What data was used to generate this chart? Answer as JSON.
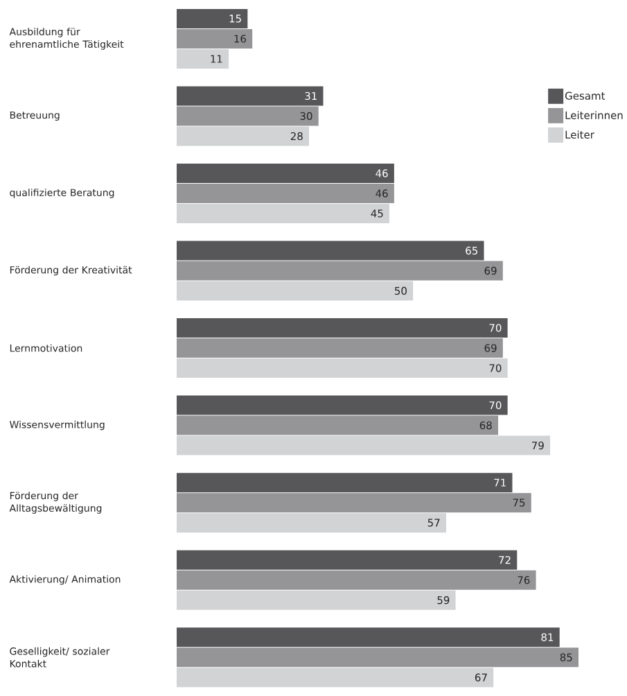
{
  "chart_data": {
    "type": "bar",
    "orientation": "horizontal",
    "data_labels": true,
    "legend": "top right",
    "categories": [
      "Ausbildung für ehrenamtliche Tätigkeit",
      "Betreuung",
      "qualifizierte Beratung",
      "Förderung der Kreativität",
      "Lernmotivation",
      "Wissensvermittlung",
      "Förderung der Alltagsbewältigung",
      "Aktivierung/ Animation",
      "Geselligkeit/ sozialer Kontakt"
    ],
    "series": [
      {
        "name": "Gesamt",
        "color": "#575759",
        "values": [
          15,
          31,
          46,
          65,
          70,
          70,
          71,
          72,
          81
        ]
      },
      {
        "name": "Leiterinnen",
        "color": "#959598",
        "values": [
          16,
          30,
          46,
          69,
          69,
          68,
          75,
          76,
          85
        ]
      },
      {
        "name": "Leiter",
        "color": "#d2d3d5",
        "values": [
          11,
          28,
          45,
          50,
          70,
          79,
          57,
          59,
          67
        ]
      }
    ]
  }
}
